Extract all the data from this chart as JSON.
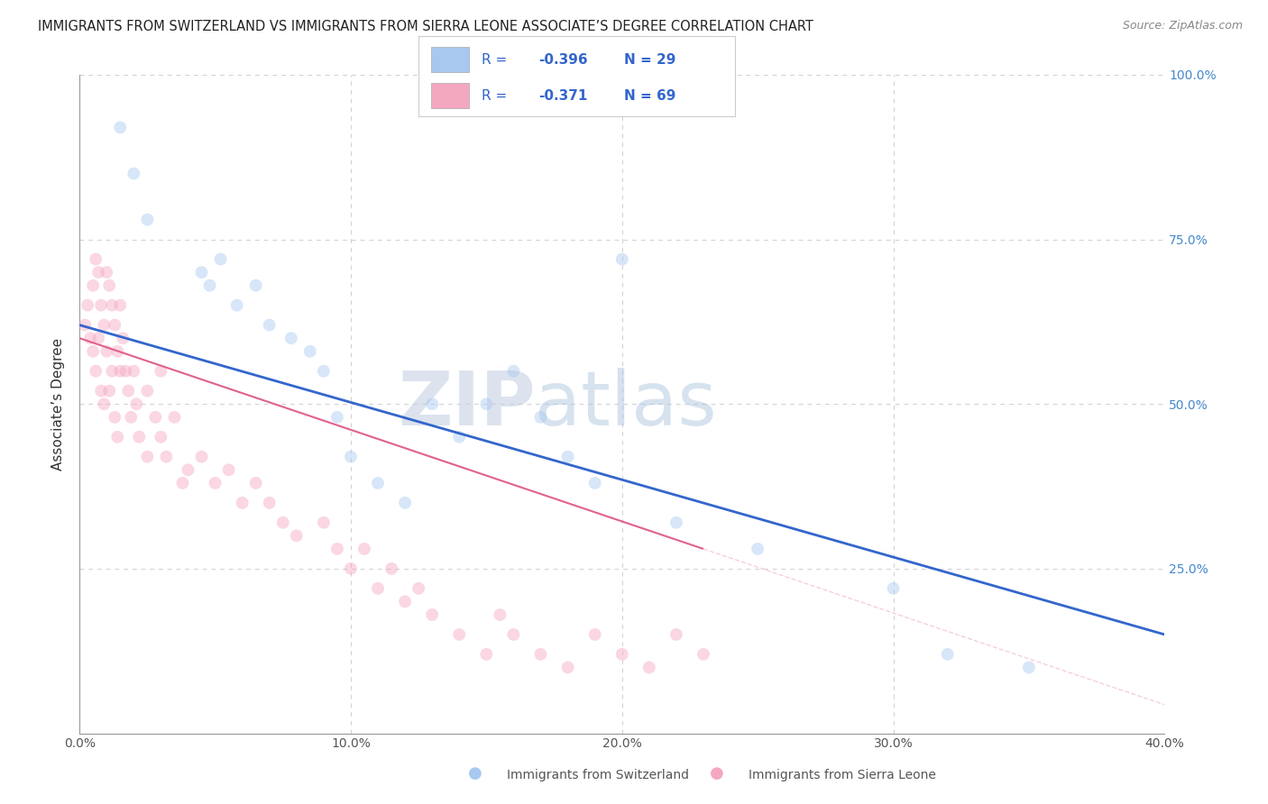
{
  "title": "IMMIGRANTS FROM SWITZERLAND VS IMMIGRANTS FROM SIERRA LEONE ASSOCIATE’S DEGREE CORRELATION CHART",
  "source": "Source: ZipAtlas.com",
  "ylabel": "Associate’s Degree",
  "xlim": [
    0.0,
    40.0
  ],
  "ylim": [
    0.0,
    100.0
  ],
  "xticks": [
    0.0,
    10.0,
    20.0,
    30.0,
    40.0
  ],
  "yticks": [
    0.0,
    25.0,
    50.0,
    75.0,
    100.0
  ],
  "legend_R1": "-0.396",
  "legend_N1": "29",
  "legend_R2": "-0.371",
  "legend_N2": "69",
  "color_blue": "#a8c8f0",
  "color_pink": "#f4a8c0",
  "color_blue_line": "#3366cc",
  "color_pink_line": "#e06090",
  "watermark_zip": "ZIP",
  "watermark_atlas": "atlas",
  "switzerland_x": [
    1.5,
    2.0,
    2.5,
    4.5,
    4.8,
    5.2,
    5.8,
    6.5,
    7.0,
    7.8,
    8.5,
    9.0,
    9.5,
    10.0,
    11.0,
    12.0,
    13.0,
    14.0,
    15.0,
    16.0,
    17.0,
    18.0,
    19.0,
    20.0,
    22.0,
    25.0,
    30.0,
    32.0,
    35.0
  ],
  "switzerland_y": [
    92,
    85,
    78,
    70,
    68,
    72,
    65,
    68,
    62,
    60,
    58,
    55,
    48,
    42,
    38,
    35,
    50,
    45,
    50,
    55,
    48,
    42,
    38,
    72,
    32,
    28,
    22,
    12,
    10
  ],
  "sierraleone_x": [
    0.2,
    0.3,
    0.4,
    0.5,
    0.5,
    0.6,
    0.6,
    0.7,
    0.7,
    0.8,
    0.8,
    0.9,
    0.9,
    1.0,
    1.0,
    1.1,
    1.1,
    1.2,
    1.2,
    1.3,
    1.3,
    1.4,
    1.4,
    1.5,
    1.5,
    1.6,
    1.7,
    1.8,
    1.9,
    2.0,
    2.1,
    2.2,
    2.5,
    2.5,
    2.8,
    3.0,
    3.0,
    3.2,
    3.5,
    3.8,
    4.0,
    4.5,
    5.0,
    5.5,
    6.0,
    6.5,
    7.0,
    7.5,
    8.0,
    9.0,
    9.5,
    10.0,
    10.5,
    11.0,
    11.5,
    12.0,
    12.5,
    13.0,
    14.0,
    15.0,
    15.5,
    16.0,
    17.0,
    18.0,
    19.0,
    20.0,
    21.0,
    22.0,
    23.0
  ],
  "sierraleone_y": [
    62,
    65,
    60,
    68,
    58,
    72,
    55,
    70,
    60,
    65,
    52,
    62,
    50,
    70,
    58,
    68,
    52,
    65,
    55,
    62,
    48,
    58,
    45,
    65,
    55,
    60,
    55,
    52,
    48,
    55,
    50,
    45,
    52,
    42,
    48,
    45,
    55,
    42,
    48,
    38,
    40,
    42,
    38,
    40,
    35,
    38,
    35,
    32,
    30,
    32,
    28,
    25,
    28,
    22,
    25,
    20,
    22,
    18,
    15,
    12,
    18,
    15,
    12,
    10,
    15,
    12,
    10,
    15,
    12
  ],
  "blue_line_x": [
    0.0,
    40.0
  ],
  "blue_line_y": [
    62.0,
    15.0
  ],
  "pink_line_x": [
    0.0,
    23.0
  ],
  "pink_line_y": [
    60.0,
    28.0
  ],
  "bg_color": "#ffffff",
  "grid_color": "#d0d0d0",
  "title_fontsize": 10.5,
  "axis_fontsize": 10,
  "dot_size": 100,
  "dot_alpha": 0.45
}
